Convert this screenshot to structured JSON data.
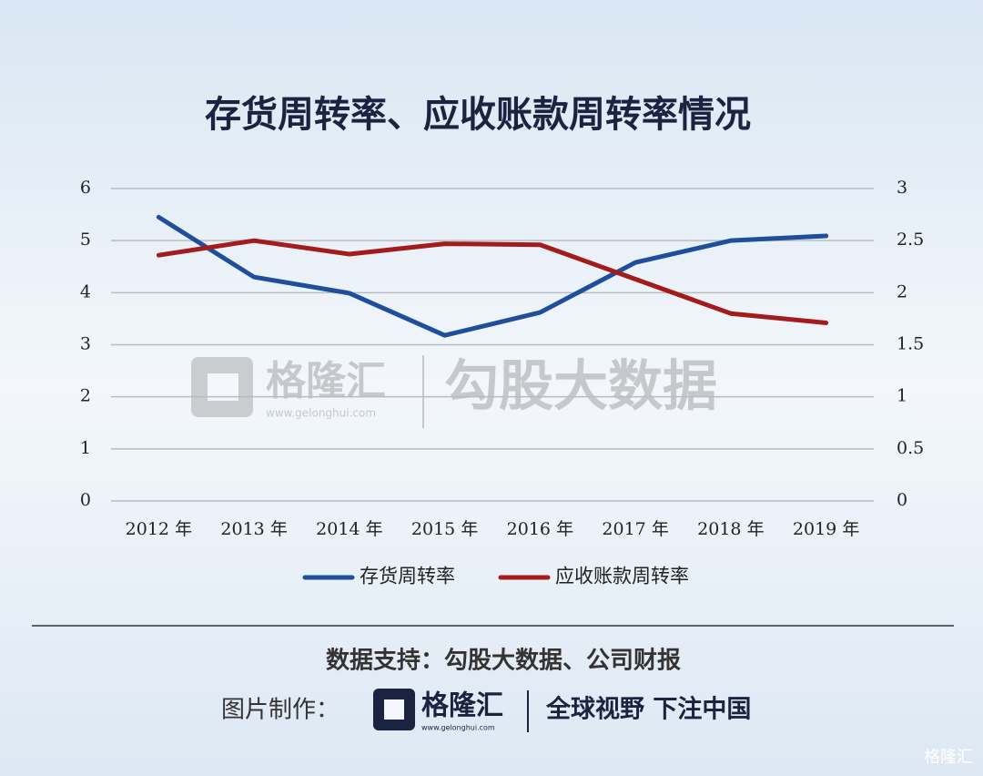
{
  "chart_data": {
    "type": "line",
    "title": "存货周转率、应收账款周转率情况",
    "categories": [
      "2012 年",
      "2013 年",
      "2014 年",
      "2015 年",
      "2016 年",
      "2017 年",
      "2018 年",
      "2019 年"
    ],
    "series": [
      {
        "name": "存货周转率",
        "color": "#1f4e9c",
        "values": [
          5.45,
          4.3,
          3.99,
          3.18,
          3.62,
          4.58,
          5.0,
          5.09
        ]
      },
      {
        "name": "应收账款周转率",
        "color": "#a31b1b",
        "axis": "y2",
        "values": [
          2.36,
          2.5,
          2.37,
          2.47,
          2.46,
          2.13,
          1.8,
          1.71
        ]
      }
    ],
    "ylim": [
      0,
      6
    ],
    "yticks": [
      0,
      1,
      2,
      3,
      4,
      5,
      6
    ],
    "y2lim": [
      0,
      3
    ],
    "y2ticks": [
      0,
      0.5,
      1,
      1.5,
      2,
      2.5,
      3
    ],
    "grid": true,
    "legend": "bottom"
  },
  "watermark": {
    "brand": "格隆汇",
    "url": "www.gelonghui.com",
    "product": "勾股大数据"
  },
  "footer": {
    "source": "数据支持：勾股大数据、公司财报",
    "made_by": "图片制作：",
    "brand": "格隆汇",
    "url": "www.gelonghui.com",
    "slogan": "全球视野 下注中国",
    "corner": "格隆汇"
  }
}
